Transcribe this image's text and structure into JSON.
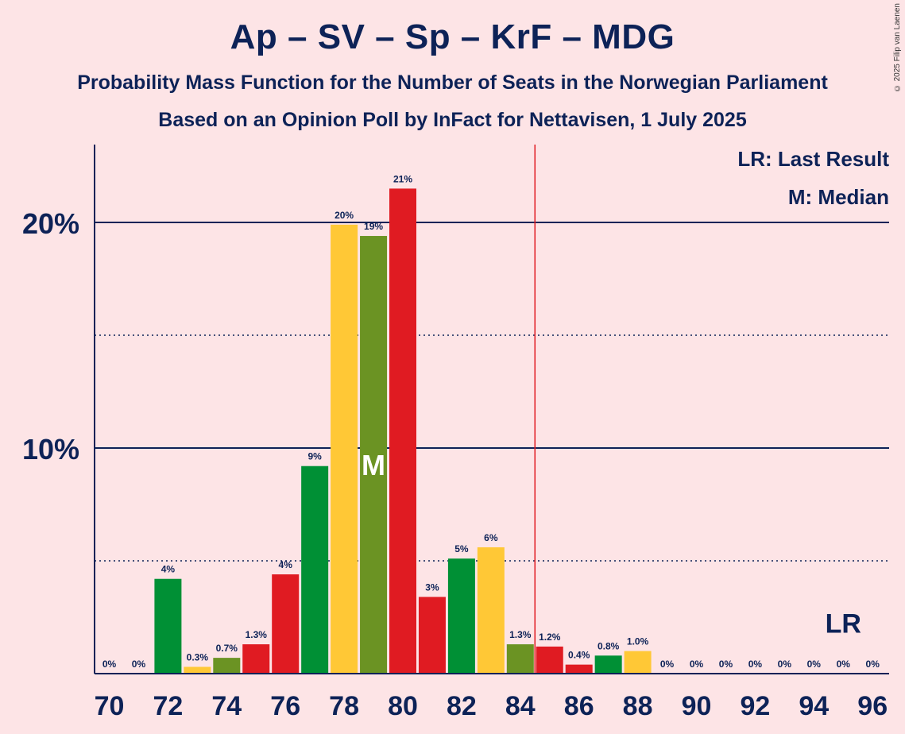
{
  "chart_data": {
    "type": "bar",
    "title": "Ap – SV – Sp – KrF – MDG",
    "subtitle1": "Probability Mass Function for the Number of Seats in the Norwegian Parliament",
    "subtitle2": "Based on an Opinion Poll by InFact for Nettavisen, 1 July 2025",
    "copyright": "© 2025 Filip van Laenen",
    "legend": {
      "lr": "LR: Last Result",
      "m": "M: Median"
    },
    "x": [
      70,
      71,
      72,
      73,
      74,
      75,
      76,
      77,
      78,
      79,
      80,
      81,
      82,
      83,
      84,
      85,
      86,
      87,
      88,
      89,
      90,
      91,
      92,
      93,
      94,
      95,
      96
    ],
    "values": [
      0,
      0,
      4.2,
      0.3,
      0.7,
      1.3,
      4.4,
      9.2,
      19.9,
      19.4,
      21.5,
      3.4,
      5.1,
      5.6,
      1.3,
      1.2,
      0.4,
      0.8,
      1.0,
      0,
      0,
      0,
      0,
      0,
      0,
      0,
      0
    ],
    "labels": [
      "0%",
      "0%",
      "4%",
      "0.3%",
      "0.7%",
      "1.3%",
      "4%",
      "9%",
      "20%",
      "19%",
      "21%",
      "3%",
      "5%",
      "6%",
      "1.3%",
      "1.2%",
      "0.4%",
      "0.8%",
      "1.0%",
      "0%",
      "0%",
      "0%",
      "0%",
      "0%",
      "0%",
      "0%",
      "0%"
    ],
    "colors": [
      "#009035",
      "#009035",
      "#009035",
      "#ffc836",
      "#6b9323",
      "#e01b22",
      "#e01b22",
      "#009035",
      "#ffc836",
      "#6b9323",
      "#e01b22",
      "#e01b22",
      "#009035",
      "#ffc836",
      "#6b9323",
      "#e01b22",
      "#e01b22",
      "#009035",
      "#ffc836",
      "#6b9323",
      "#e01b22",
      "#e01b22",
      "#009035",
      "#ffc836",
      "#6b9323",
      "#e01b22",
      "#e01b22"
    ],
    "xticks": [
      "70",
      "72",
      "74",
      "76",
      "78",
      "80",
      "82",
      "84",
      "86",
      "88",
      "90",
      "92",
      "94",
      "96"
    ],
    "ytick_labels": [
      "10%",
      "20%"
    ],
    "ytick_values": [
      10,
      20
    ],
    "ydotted": [
      5,
      15
    ],
    "ylim": [
      0,
      23.5
    ],
    "median_seat": 79,
    "median_label": "M",
    "majority_line_seat": 84.5,
    "last_result_seat": 95,
    "last_result_label": "LR"
  }
}
